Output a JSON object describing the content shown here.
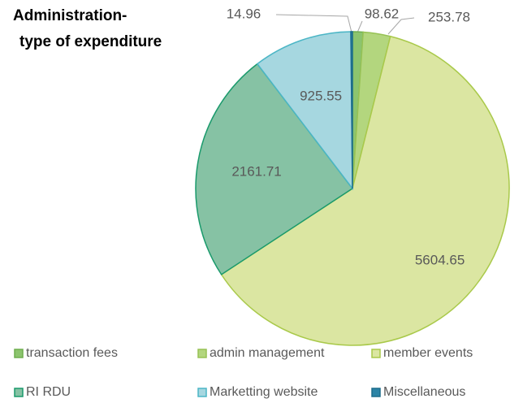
{
  "chart_data": {
    "type": "pie",
    "title_lines": [
      "Administration-",
      "type of expenditure"
    ],
    "categories": [
      "transaction fees",
      "admin management",
      "member events",
      "RI RDU",
      "Marketting website",
      "Miscellaneous"
    ],
    "values": [
      98.62,
      253.78,
      5604.65,
      2161.71,
      925.55,
      14.96
    ],
    "colors": [
      "#8cc46e",
      "#b3d67e",
      "#dbe6a2",
      "#86c2a4",
      "#a6d7e0",
      "#2c84a6"
    ],
    "edge_colors": [
      "#6fae4f",
      "#97c255",
      "#a9c94a",
      "#1a9a6c",
      "#4cb6c6",
      "#1d6d8c"
    ]
  }
}
